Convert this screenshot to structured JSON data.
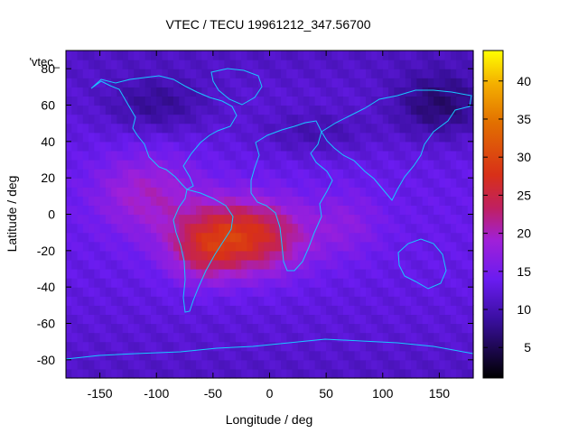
{
  "chart_data": {
    "type": "heatmap",
    "title": "VTEC / TECU 19961212_347.56700",
    "xlabel": "Longitude / deg",
    "ylabel": "Latitude / deg",
    "xlim": [
      -180,
      180
    ],
    "ylim": [
      -90,
      90
    ],
    "x_ticks": [
      -150,
      -100,
      -50,
      0,
      50,
      100,
      150
    ],
    "y_ticks": [
      -80,
      -60,
      -40,
      -20,
      0,
      20,
      40,
      60,
      80
    ],
    "colorbar": {
      "min": 1,
      "max": 44,
      "ticks": [
        5,
        10,
        15,
        20,
        25,
        30,
        35,
        40
      ],
      "palette": "black-purple-red-orange-yellow"
    },
    "legend_label": "'vtec_",
    "grid_step_deg": 5,
    "features": {
      "background": 11,
      "blobs": [
        {
          "lon": -25,
          "lat": -12,
          "sigma_lon": 55,
          "sigma_lat": 20,
          "amp": 15
        },
        {
          "lon": -60,
          "lat": -22,
          "sigma_lon": 28,
          "sigma_lat": 16,
          "amp": 5
        },
        {
          "lon": -110,
          "lat": 12,
          "sigma_lon": 45,
          "sigma_lat": 22,
          "amp": 6
        },
        {
          "lon": 70,
          "lat": -5,
          "sigma_lon": 30,
          "sigma_lat": 18,
          "amp": 3
        },
        {
          "lon": 150,
          "lat": 60,
          "sigma_lon": 40,
          "sigma_lat": 18,
          "amp": -6
        },
        {
          "lon": -100,
          "lat": 60,
          "sigma_lon": 45,
          "sigma_lat": 15,
          "amp": -4
        },
        {
          "lon": 40,
          "lat": 45,
          "sigma_lon": 50,
          "sigma_lat": 12,
          "amp": -3
        }
      ]
    }
  }
}
